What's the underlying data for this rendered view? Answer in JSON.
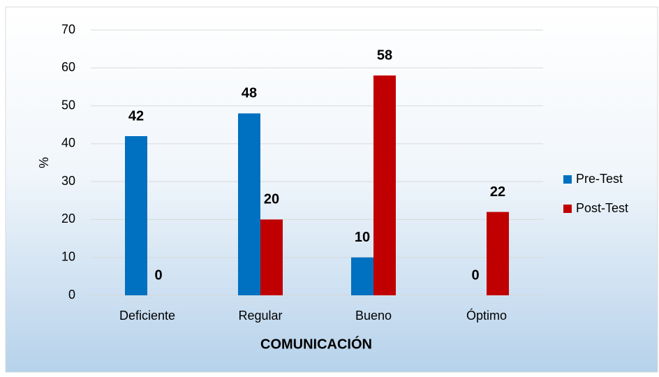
{
  "chart_data": {
    "type": "bar",
    "x_label": "COMUNICACIÓN",
    "y_label": "%",
    "categories": [
      "Deficiente",
      "Regular",
      "Bueno",
      "Óptimo"
    ],
    "series": [
      {
        "name": "Pre-Test",
        "color": "#0070c0",
        "values": [
          42,
          48,
          10,
          0
        ]
      },
      {
        "name": "Post-Test",
        "color": "#c00000",
        "values": [
          0,
          20,
          58,
          22
        ]
      }
    ],
    "ylim": [
      0,
      70
    ],
    "yticks": [
      0,
      10,
      20,
      30,
      40,
      50,
      60,
      70
    ],
    "grid": true,
    "legend": "right"
  }
}
